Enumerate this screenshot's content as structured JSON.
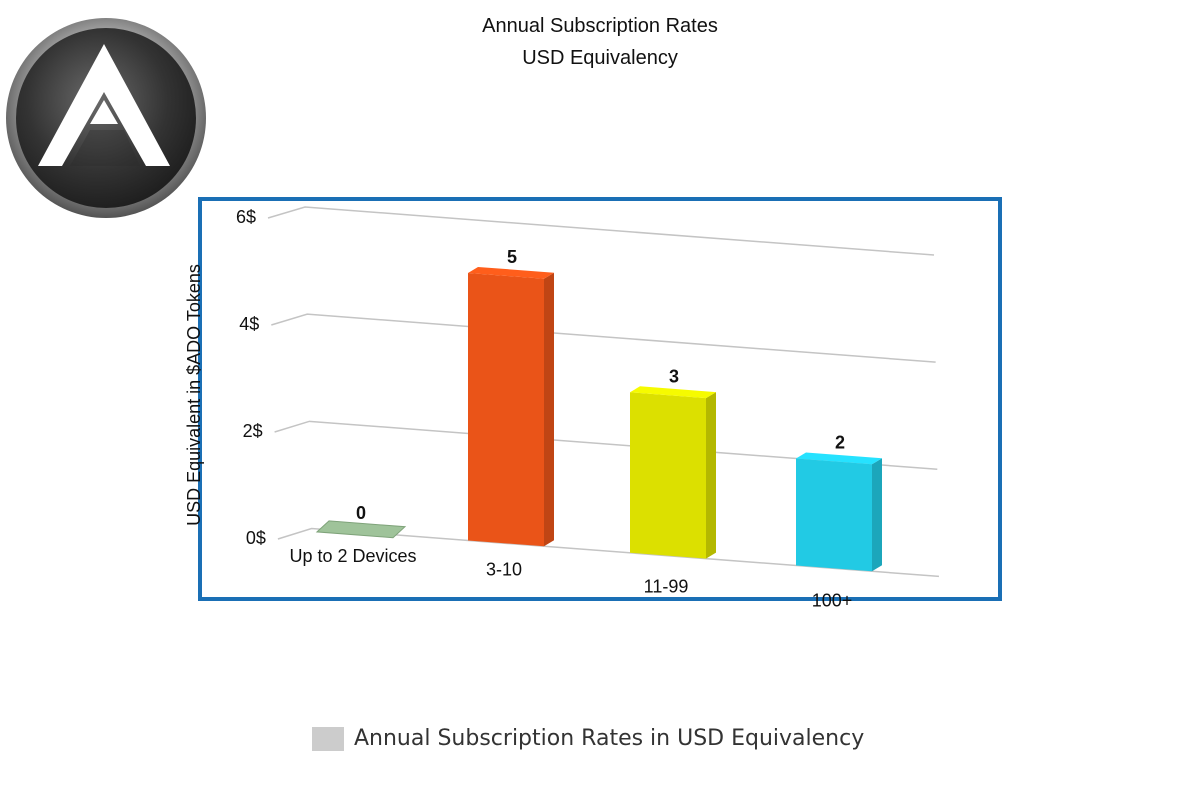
{
  "title": "Annual Subscription Rates",
  "subtitle": "USD Equivalency",
  "colors": {
    "frame": "#1a6fb5",
    "grid": "#c4c4c4",
    "bars": [
      "#9fc39a",
      "#ea5418",
      "#dce000",
      "#22cae4"
    ],
    "legend_swatch": "#cccccc"
  },
  "chart_data": {
    "type": "bar",
    "categories": [
      "Up to 2 Devices",
      "3-10",
      "11-99",
      "100+"
    ],
    "values": [
      0,
      5,
      3,
      2
    ],
    "value_labels": [
      "0",
      "5",
      "3",
      "2"
    ],
    "ylabel": "USD Equivalent in $ADO Tokens",
    "y_ticks": [
      0,
      2,
      4,
      6
    ],
    "y_tick_labels": [
      "0$",
      "2$",
      "4$",
      "6$"
    ],
    "ylim": [
      0,
      6
    ],
    "grid": true,
    "legend": {
      "position": "bottom",
      "entries": [
        "Annual Subscription Rates in USD Equivalency"
      ]
    }
  }
}
